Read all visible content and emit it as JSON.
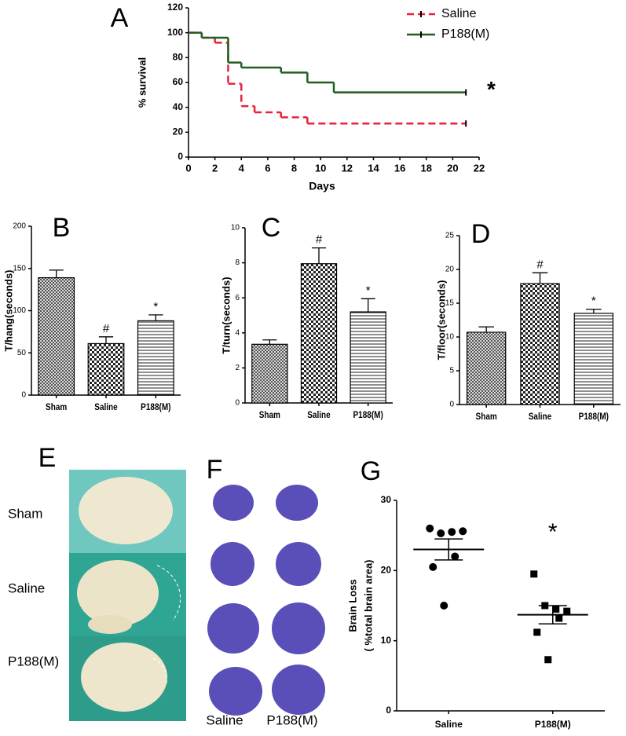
{
  "chart_data": [
    {
      "type": "step",
      "label": "A",
      "xlabel": "Days",
      "ylabel": "% survival",
      "xlim": [
        0,
        22
      ],
      "xticks": [
        0,
        2,
        4,
        6,
        8,
        10,
        12,
        14,
        16,
        18,
        20,
        22
      ],
      "ylim": [
        0,
        120
      ],
      "yticks": [
        0,
        20,
        40,
        60,
        80,
        100,
        120
      ],
      "series": [
        {
          "name": "Saline",
          "color": "#e8223a",
          "line_style": "dashed",
          "x": [
            0,
            1,
            2,
            3,
            4,
            5,
            7,
            9,
            21
          ],
          "values": [
            100,
            96,
            92,
            59,
            41,
            36,
            32,
            27,
            27
          ]
        },
        {
          "name": "P188(M)",
          "color": "#1f5e1f",
          "line_style": "solid",
          "x": [
            0,
            1,
            3,
            4,
            7,
            9,
            11,
            21
          ],
          "values": [
            100,
            96,
            76,
            72,
            68,
            60,
            52,
            52
          ]
        }
      ],
      "annotation": "*"
    },
    {
      "type": "bar",
      "label": "B",
      "ylabel": "T/hang(seconds)",
      "categories": [
        "Sham",
        "Saline",
        "P188(M)"
      ],
      "values": [
        139,
        61,
        88
      ],
      "errors": [
        9,
        8,
        7
      ],
      "markers": [
        null,
        "#",
        "*"
      ],
      "ylim": [
        0,
        200
      ],
      "yticks": [
        0,
        50,
        100,
        150,
        200
      ]
    },
    {
      "type": "bar",
      "label": "C",
      "ylabel": "T/turn(seconds)",
      "categories": [
        "Sham",
        "Saline",
        "P188(M)"
      ],
      "values": [
        3.35,
        7.95,
        5.2
      ],
      "errors": [
        0.25,
        0.9,
        0.75
      ],
      "markers": [
        null,
        "#",
        "*"
      ],
      "ylim": [
        0,
        10
      ],
      "yticks": [
        0,
        2,
        4,
        6,
        8,
        10
      ]
    },
    {
      "type": "bar",
      "label": "D",
      "ylabel": "T/floor(seconds)",
      "categories": [
        "Sham",
        "Saline",
        "P188(M)"
      ],
      "values": [
        10.7,
        17.9,
        13.5
      ],
      "errors": [
        0.8,
        1.6,
        0.6
      ],
      "markers": [
        null,
        "#",
        "*"
      ],
      "ylim": [
        0,
        25
      ],
      "yticks": [
        0,
        5,
        10,
        15,
        20,
        25
      ]
    },
    {
      "type": "dot",
      "label": "G",
      "ylabel": "Brain Loss",
      "ylabel2": "( %total brain area)",
      "ylim": [
        0,
        30
      ],
      "yticks": [
        0,
        10,
        20,
        30
      ],
      "groups": [
        {
          "name": "Saline",
          "values": [
            26,
            25.3,
            25.5,
            25.6,
            22,
            20.5,
            15
          ],
          "mean": 23,
          "sem": 1.5
        },
        {
          "name": "P188(M)",
          "values": [
            19.5,
            15,
            14.5,
            14.2,
            13.2,
            11.2,
            7.3
          ],
          "mean": 13.7,
          "sem": 1.3
        }
      ],
      "annotation": "*"
    }
  ],
  "photo_panels": [
    {
      "label": "E",
      "row_labels": [
        "Sham",
        "Saline",
        "P188(M)"
      ]
    },
    {
      "label": "F",
      "column_labels": [
        "Saline",
        "P188(M)"
      ]
    }
  ]
}
